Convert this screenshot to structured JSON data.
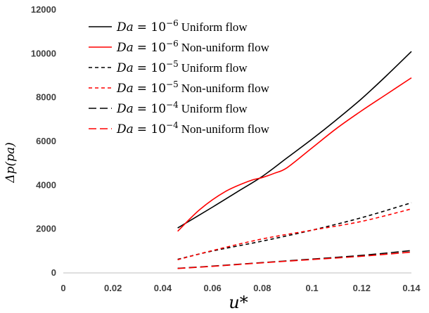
{
  "chart_data": {
    "type": "line",
    "title": "",
    "xlabel": "u*",
    "ylabel": "Δp(pa)",
    "xlim": [
      0,
      0.14
    ],
    "ylim": [
      0,
      12000
    ],
    "x_ticks": [
      0,
      0.02,
      0.04,
      0.06,
      0.08,
      0.1,
      0.12,
      0.14
    ],
    "x_tick_labels": [
      "0",
      "0.02",
      "0.04",
      "0.06",
      "0.08",
      "0.1",
      "0.12",
      "0.14"
    ],
    "y_ticks": [
      0,
      2000,
      4000,
      6000,
      8000,
      10000,
      12000
    ],
    "y_tick_labels": [
      "0",
      "2000",
      "4000",
      "6000",
      "8000",
      "10000",
      "12000"
    ],
    "grid": false,
    "legend_position": "top-left",
    "series": [
      {
        "name": "Da = 10^-6 Uniform flow",
        "legend": {
          "prefix": "Da",
          "base": "= 10",
          "exponent": "−6",
          "label": "Uniform flow"
        },
        "color": "#000000",
        "dash": "solid",
        "x": [
          0.046,
          0.06,
          0.07,
          0.08,
          0.09,
          0.1,
          0.11,
          0.12,
          0.13,
          0.14
        ],
        "y": [
          2050,
          3000,
          3700,
          4400,
          5250,
          6100,
          7000,
          7950,
          9000,
          10100
        ]
      },
      {
        "name": "Da = 10^-6 Non-uniform flow",
        "legend": {
          "prefix": "Da",
          "base": "= 10",
          "exponent": "−6",
          "label": "Non-uniform flow"
        },
        "color": "#ff0000",
        "dash": "solid",
        "x": [
          0.046,
          0.055,
          0.065,
          0.075,
          0.08,
          0.085,
          0.09,
          0.1,
          0.11,
          0.12,
          0.13,
          0.14
        ],
        "y": [
          1900,
          2900,
          3700,
          4200,
          4350,
          4550,
          4800,
          5700,
          6600,
          7400,
          8150,
          8900
        ]
      },
      {
        "name": "Da = 10^-5 Uniform flow",
        "legend": {
          "prefix": "Da",
          "base": "= 10",
          "exponent": "−5",
          "label": "Uniform flow"
        },
        "color": "#000000",
        "dash": "short",
        "x": [
          0.046,
          0.06,
          0.08,
          0.1,
          0.12,
          0.14
        ],
        "y": [
          620,
          1000,
          1450,
          1950,
          2520,
          3200
        ]
      },
      {
        "name": "Da = 10^-5 Non-uniform flow",
        "legend": {
          "prefix": "Da",
          "base": "= 10",
          "exponent": "−5",
          "label": "Non-uniform flow"
        },
        "color": "#ff0000",
        "dash": "short",
        "x": [
          0.046,
          0.06,
          0.08,
          0.1,
          0.12,
          0.14
        ],
        "y": [
          600,
          1020,
          1550,
          1950,
          2350,
          2920
        ]
      },
      {
        "name": "Da = 10^-4 Uniform flow",
        "legend": {
          "prefix": "Da",
          "base": "= 10",
          "exponent": "−4",
          "label": "Uniform flow"
        },
        "color": "#000000",
        "dash": "long",
        "x": [
          0.046,
          0.06,
          0.08,
          0.1,
          0.12,
          0.14
        ],
        "y": [
          210,
          310,
          470,
          630,
          800,
          1020
        ]
      },
      {
        "name": "Da = 10^-4 Non-uniform flow",
        "legend": {
          "prefix": "Da",
          "base": "= 10",
          "exponent": "−4",
          "label": "Non-uniform flow"
        },
        "color": "#ff0000",
        "dash": "long",
        "x": [
          0.046,
          0.06,
          0.08,
          0.1,
          0.12,
          0.14
        ],
        "y": [
          200,
          300,
          460,
          610,
          760,
          950
        ]
      }
    ]
  }
}
